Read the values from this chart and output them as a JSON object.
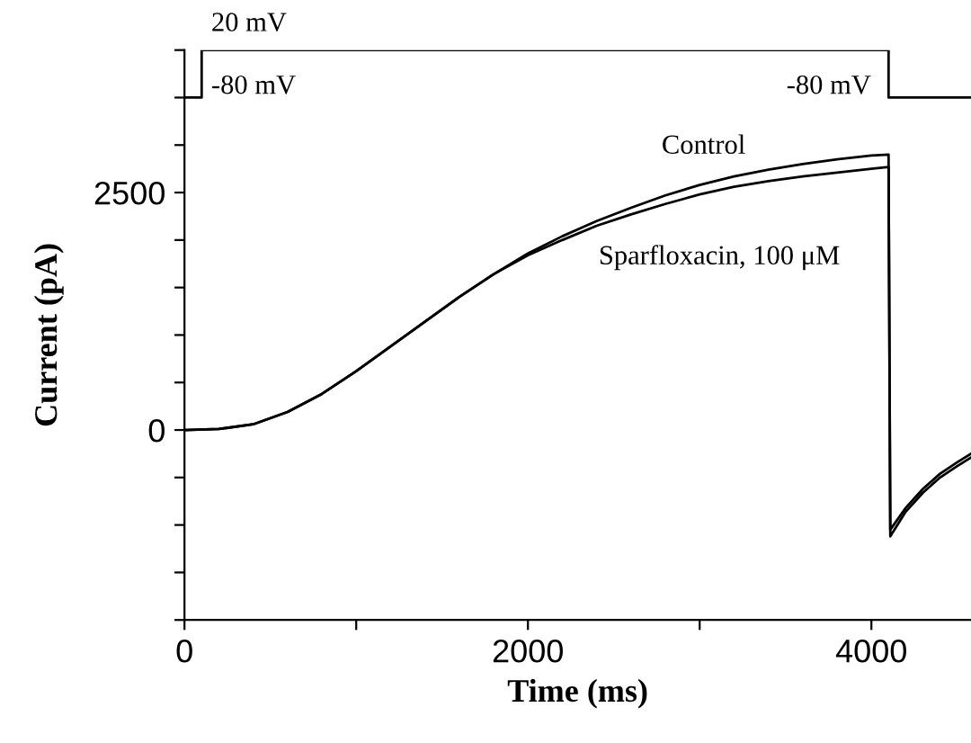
{
  "chart_data": {
    "type": "line",
    "xlabel": "Time (ms)",
    "ylabel": "Current (pA)",
    "xlim": [
      0,
      4580
    ],
    "ylim": [
      -2000,
      4000
    ],
    "xticks": [
      0,
      {
        "value": 1000,
        "label": null
      },
      2000,
      {
        "value": 3000,
        "label": null
      },
      4000
    ],
    "yticks": [
      {
        "value": -2000,
        "label": null
      },
      {
        "value": -1500,
        "label": null
      },
      {
        "value": -1000,
        "label": null
      },
      {
        "value": -500,
        "label": null
      },
      0,
      {
        "value": 500,
        "label": null
      },
      {
        "value": 1000,
        "label": null
      },
      {
        "value": 1500,
        "label": null
      },
      {
        "value": 2000,
        "label": null
      },
      2500,
      {
        "value": 3000,
        "label": null
      },
      {
        "value": 3500,
        "label": null
      },
      {
        "value": 4000,
        "label": null
      }
    ],
    "grid": false,
    "legend": false,
    "marker": "none",
    "line_style": "solid",
    "series": [
      {
        "type": "step",
        "color": "#000000",
        "x": [
          0,
          100,
          4100,
          4580
        ],
        "values": [
          3500,
          4000,
          3500,
          3500
        ]
      },
      {
        "color": "#000000",
        "x": [
          0,
          200,
          400,
          600,
          800,
          1000,
          1200,
          1400,
          1600,
          1800,
          2000,
          2200,
          2400,
          2600,
          2800,
          3000,
          3200,
          3400,
          3600,
          3800,
          4000,
          4100,
          4110,
          4200,
          4300,
          4400,
          4500,
          4580
        ],
        "values": [
          0,
          10,
          60,
          190,
          380,
          620,
          880,
          1140,
          1400,
          1640,
          1860,
          2040,
          2200,
          2340,
          2470,
          2580,
          2670,
          2740,
          2800,
          2850,
          2890,
          2900,
          -1050,
          -820,
          -620,
          -460,
          -340,
          -250
        ]
      },
      {
        "color": "#000000",
        "x": [
          0,
          200,
          400,
          600,
          800,
          1000,
          1200,
          1400,
          1600,
          1800,
          2000,
          2200,
          2400,
          2600,
          2800,
          3000,
          3200,
          3400,
          3600,
          3800,
          4000,
          4100,
          4110,
          4200,
          4300,
          4400,
          4500,
          4580
        ],
        "values": [
          0,
          10,
          60,
          190,
          380,
          620,
          880,
          1140,
          1400,
          1640,
          1840,
          2000,
          2150,
          2270,
          2380,
          2480,
          2560,
          2620,
          2670,
          2710,
          2750,
          2770,
          -1120,
          -860,
          -660,
          -500,
          -380,
          -290
        ]
      }
    ],
    "annotations": [
      "20 mV",
      "-80 mV",
      "-80 mV",
      "Control",
      "Sparfloxacin, 100 μM"
    ]
  }
}
